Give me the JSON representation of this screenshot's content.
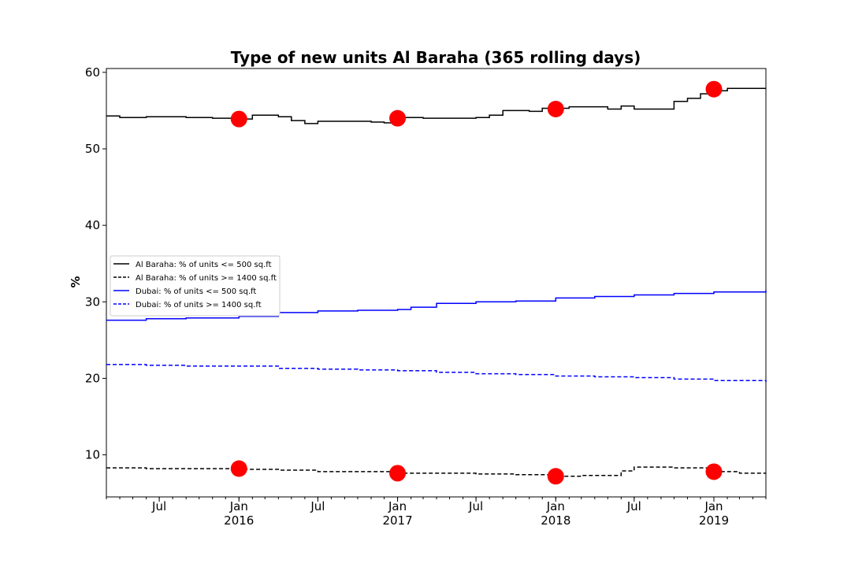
{
  "chart_data": {
    "type": "line",
    "title": "Type of new units Al Baraha (365 rolling days)",
    "xlabel": "",
    "ylabel": "%",
    "x_range": [
      "2015-03-01",
      "2019-05-01"
    ],
    "ylim": [
      4.5,
      60.5
    ],
    "y_ticks": [
      10,
      20,
      30,
      40,
      50,
      60
    ],
    "x_ticks": [
      {
        "date": "2015-07-01",
        "label": "Jul",
        "sublabel": ""
      },
      {
        "date": "2016-01-01",
        "label": "Jan",
        "sublabel": "2016"
      },
      {
        "date": "2016-07-01",
        "label": "Jul",
        "sublabel": ""
      },
      {
        "date": "2017-01-01",
        "label": "Jan",
        "sublabel": "2017"
      },
      {
        "date": "2017-07-01",
        "label": "Jul",
        "sublabel": ""
      },
      {
        "date": "2018-01-01",
        "label": "Jan",
        "sublabel": "2018"
      },
      {
        "date": "2018-07-01",
        "label": "Jul",
        "sublabel": ""
      },
      {
        "date": "2019-01-01",
        "label": "Jan",
        "sublabel": "2019"
      }
    ],
    "grid": false,
    "legend_position": "center-left",
    "series": [
      {
        "name": "Al Baraha: % of units <= 500 sq.ft",
        "color": "#000000",
        "dash": "solid",
        "points": [
          [
            "2015-03-01",
            54.3
          ],
          [
            "2015-04-01",
            54.1
          ],
          [
            "2015-06-01",
            54.2
          ],
          [
            "2015-07-01",
            54.2
          ],
          [
            "2015-09-01",
            54.1
          ],
          [
            "2015-11-01",
            54.0
          ],
          [
            "2016-01-01",
            53.9
          ],
          [
            "2016-02-01",
            54.4
          ],
          [
            "2016-04-01",
            54.2
          ],
          [
            "2016-05-01",
            53.7
          ],
          [
            "2016-06-01",
            53.3
          ],
          [
            "2016-07-01",
            53.6
          ],
          [
            "2016-09-01",
            53.6
          ],
          [
            "2016-11-01",
            53.5
          ],
          [
            "2016-12-01",
            53.4
          ],
          [
            "2017-01-01",
            54.1
          ],
          [
            "2017-03-01",
            54.0
          ],
          [
            "2017-05-01",
            54.0
          ],
          [
            "2017-07-01",
            54.1
          ],
          [
            "2017-08-01",
            54.4
          ],
          [
            "2017-09-01",
            55.0
          ],
          [
            "2017-11-01",
            54.9
          ],
          [
            "2017-12-01",
            55.3
          ],
          [
            "2018-02-01",
            55.5
          ],
          [
            "2018-04-01",
            55.5
          ],
          [
            "2018-05-01",
            55.2
          ],
          [
            "2018-06-01",
            55.6
          ],
          [
            "2018-07-01",
            55.2
          ],
          [
            "2018-09-01",
            55.2
          ],
          [
            "2018-10-01",
            56.2
          ],
          [
            "2018-11-01",
            56.6
          ],
          [
            "2018-12-01",
            57.2
          ],
          [
            "2019-01-01",
            57.6
          ],
          [
            "2019-02-01",
            57.9
          ],
          [
            "2019-05-01",
            57.9
          ]
        ]
      },
      {
        "name": "Al Baraha: % of units >= 1400 sq.ft",
        "color": "#000000",
        "dash": "dashed",
        "points": [
          [
            "2015-03-01",
            8.3
          ],
          [
            "2015-06-01",
            8.2
          ],
          [
            "2015-09-01",
            8.2
          ],
          [
            "2016-01-01",
            8.1
          ],
          [
            "2016-04-01",
            8.0
          ],
          [
            "2016-07-01",
            7.8
          ],
          [
            "2016-10-01",
            7.8
          ],
          [
            "2017-01-01",
            7.6
          ],
          [
            "2017-04-01",
            7.6
          ],
          [
            "2017-07-01",
            7.5
          ],
          [
            "2017-10-01",
            7.4
          ],
          [
            "2018-01-01",
            7.2
          ],
          [
            "2018-03-01",
            7.3
          ],
          [
            "2018-05-01",
            7.3
          ],
          [
            "2018-06-01",
            7.9
          ],
          [
            "2018-07-01",
            8.4
          ],
          [
            "2018-10-01",
            8.3
          ],
          [
            "2019-01-01",
            7.8
          ],
          [
            "2019-03-01",
            7.6
          ],
          [
            "2019-05-01",
            7.6
          ]
        ]
      },
      {
        "name": "Dubai: % of units <= 500 sq.ft",
        "color": "#0000ff",
        "dash": "solid",
        "points": [
          [
            "2015-03-01",
            27.6
          ],
          [
            "2015-06-01",
            27.8
          ],
          [
            "2015-09-01",
            27.9
          ],
          [
            "2016-01-01",
            28.1
          ],
          [
            "2016-04-01",
            28.6
          ],
          [
            "2016-07-01",
            28.8
          ],
          [
            "2016-10-01",
            28.9
          ],
          [
            "2017-01-01",
            29.0
          ],
          [
            "2017-02-01",
            29.3
          ],
          [
            "2017-04-01",
            29.8
          ],
          [
            "2017-07-01",
            30.0
          ],
          [
            "2017-10-01",
            30.1
          ],
          [
            "2018-01-01",
            30.5
          ],
          [
            "2018-04-01",
            30.7
          ],
          [
            "2018-07-01",
            30.9
          ],
          [
            "2018-10-01",
            31.1
          ],
          [
            "2019-01-01",
            31.3
          ],
          [
            "2019-05-01",
            31.5
          ]
        ]
      },
      {
        "name": "Dubai: % of units >= 1400 sq.ft",
        "color": "#0000ff",
        "dash": "dashed",
        "points": [
          [
            "2015-03-01",
            21.8
          ],
          [
            "2015-06-01",
            21.7
          ],
          [
            "2015-09-01",
            21.6
          ],
          [
            "2016-01-01",
            21.6
          ],
          [
            "2016-04-01",
            21.3
          ],
          [
            "2016-07-01",
            21.2
          ],
          [
            "2016-10-01",
            21.1
          ],
          [
            "2017-01-01",
            21.0
          ],
          [
            "2017-04-01",
            20.8
          ],
          [
            "2017-07-01",
            20.6
          ],
          [
            "2017-10-01",
            20.5
          ],
          [
            "2018-01-01",
            20.3
          ],
          [
            "2018-04-01",
            20.2
          ],
          [
            "2018-07-01",
            20.1
          ],
          [
            "2018-10-01",
            19.9
          ],
          [
            "2019-01-01",
            19.7
          ],
          [
            "2019-05-01",
            19.5
          ]
        ]
      }
    ],
    "markers": {
      "color": "#ff0000",
      "points": [
        [
          "2016-01-01",
          53.9
        ],
        [
          "2017-01-01",
          54.0
        ],
        [
          "2018-01-01",
          55.2
        ],
        [
          "2019-01-01",
          57.8
        ],
        [
          "2016-01-01",
          8.2
        ],
        [
          "2017-01-01",
          7.6
        ],
        [
          "2018-01-01",
          7.2
        ],
        [
          "2019-01-01",
          7.8
        ]
      ]
    }
  }
}
